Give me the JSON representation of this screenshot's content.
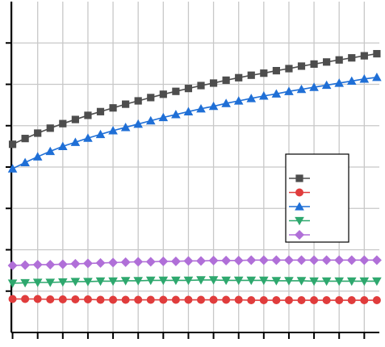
{
  "chart_data": {
    "type": "line",
    "title": "",
    "xlabel": "",
    "ylabel": "",
    "x": [
      1,
      2,
      3,
      4,
      5,
      6,
      7,
      8,
      9,
      10,
      11,
      12,
      13,
      14,
      15,
      16,
      17,
      18,
      19,
      20,
      21,
      22,
      23,
      24,
      25,
      26,
      27,
      28,
      29,
      30
    ],
    "xlim": [
      0.9,
      30.2
    ],
    "ylim": [
      0,
      800
    ],
    "grid": true,
    "legend_position": "middle-right",
    "series": [
      {
        "marker": "square",
        "color": "#4d4d4d",
        "values": [
          455,
          469,
          482,
          494,
          505,
          515,
          525,
          534,
          543,
          552,
          560,
          568,
          576,
          583,
          590,
          597,
          603,
          610,
          616,
          622,
          627,
          633,
          638,
          644,
          649,
          654,
          659,
          664,
          669,
          674
        ]
      },
      {
        "marker": "triangle-up",
        "color": "#1f6fd6",
        "values": [
          396,
          411,
          425,
          438,
          450,
          460,
          470,
          479,
          488,
          496,
          504,
          512,
          520,
          527,
          534,
          541,
          547,
          554,
          560,
          566,
          572,
          577,
          583,
          588,
          593,
          598,
          603,
          608,
          613,
          617
        ]
      },
      {
        "marker": "diamond",
        "color": "#b06fd8",
        "values": [
          162,
          163,
          164,
          164,
          165,
          166,
          167,
          168,
          169,
          170,
          171,
          171,
          172,
          172,
          173,
          173,
          174,
          174,
          174,
          175,
          175,
          175,
          175,
          175,
          175,
          175,
          175,
          175,
          175,
          175
        ]
      },
      {
        "marker": "triangle-down",
        "color": "#2ea86e",
        "values": [
          119,
          120,
          121,
          121,
          122,
          123,
          123,
          124,
          124,
          125,
          125,
          126,
          126,
          126,
          126,
          127,
          127,
          126,
          126,
          126,
          126,
          125,
          125,
          125,
          124,
          124,
          124,
          124,
          124,
          124
        ]
      },
      {
        "marker": "circle",
        "color": "#e03c3c",
        "values": [
          81,
          81,
          81,
          80,
          80,
          80,
          80,
          79,
          79,
          79,
          79,
          79,
          79,
          79,
          79,
          79,
          79,
          79,
          79,
          78,
          78,
          78,
          78,
          78,
          78,
          78,
          78,
          78,
          78,
          78
        ]
      }
    ],
    "legend_order": [
      "square",
      "circle",
      "triangle-up",
      "triangle-down",
      "diamond"
    ]
  }
}
